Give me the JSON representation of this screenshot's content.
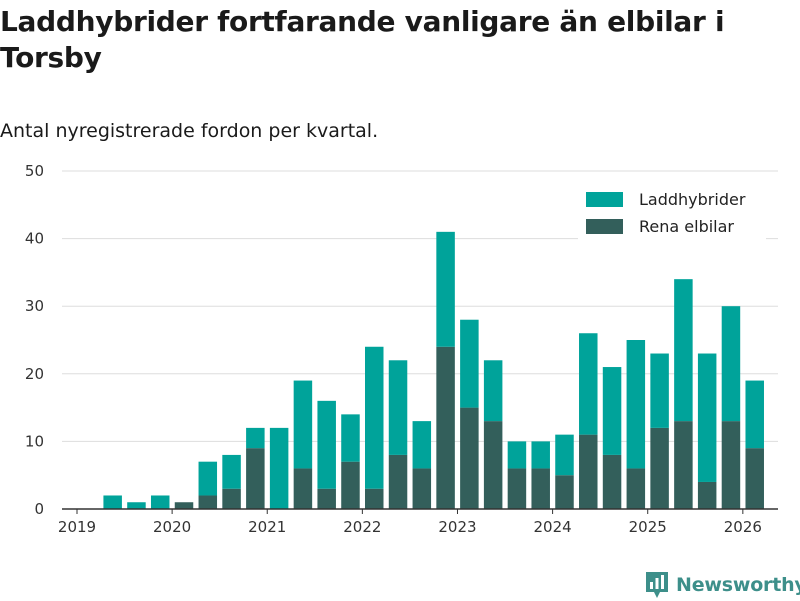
{
  "title": "Laddhybrider fortfarande vanligare än elbilar i Torsby",
  "subtitle": "Antal nyregistrerade fordon per kvartal.",
  "brand": {
    "name": "Newsworthy",
    "color": "#3d8f8a"
  },
  "colors": {
    "laddhybrider": "#00a39a",
    "rena_elbilar": "#335f5b",
    "grid": "#dddddd",
    "axis": "#333333"
  },
  "chart_data": {
    "type": "bar",
    "stacked": true,
    "title": "Laddhybrider fortfarande vanligare än elbilar i Torsby",
    "subtitle": "Antal nyregistrerade fordon per kvartal.",
    "xlabel": "",
    "ylabel": "",
    "ylim": [
      0,
      50
    ],
    "yticks": [
      0,
      10,
      20,
      30,
      40,
      50
    ],
    "grid": true,
    "legend_position": "top-right",
    "categories": [
      "2019Q1",
      "2019Q2",
      "2019Q3",
      "2019Q4",
      "2020Q1",
      "2020Q2",
      "2020Q3",
      "2020Q4",
      "2021Q1",
      "2021Q2",
      "2021Q3",
      "2021Q4",
      "2022Q1",
      "2022Q2",
      "2022Q3",
      "2022Q4",
      "2023Q1",
      "2023Q2",
      "2023Q3",
      "2023Q4",
      "2024Q1",
      "2024Q2",
      "2024Q3",
      "2024Q4",
      "2025Q1",
      "2025Q2",
      "2025Q3",
      "2025Q4",
      "2026Q1"
    ],
    "year_ticks": [
      {
        "label": "2019",
        "index": 0
      },
      {
        "label": "2020",
        "index": 4
      },
      {
        "label": "2021",
        "index": 8
      },
      {
        "label": "2022",
        "index": 12
      },
      {
        "label": "2023",
        "index": 16
      },
      {
        "label": "2024",
        "index": 20
      },
      {
        "label": "2025",
        "index": 24
      },
      {
        "label": "2026",
        "index": 28
      }
    ],
    "series": [
      {
        "name": "Rena elbilar",
        "key": "rena_elbilar",
        "values": [
          0,
          0,
          0,
          0,
          1,
          2,
          3,
          9,
          0,
          6,
          3,
          7,
          3,
          8,
          6,
          24,
          15,
          13,
          6,
          6,
          5,
          11,
          8,
          6,
          12,
          13,
          4,
          13,
          9
        ]
      },
      {
        "name": "Laddhybrider",
        "key": "laddhybrider",
        "values": [
          0,
          2,
          1,
          2,
          0,
          5,
          5,
          3,
          12,
          13,
          13,
          7,
          21,
          14,
          7,
          17,
          13,
          9,
          4,
          4,
          6,
          15,
          13,
          19,
          11,
          21,
          19,
          17,
          10
        ]
      }
    ],
    "legend": [
      "Laddhybrider",
      "Rena elbilar"
    ]
  }
}
